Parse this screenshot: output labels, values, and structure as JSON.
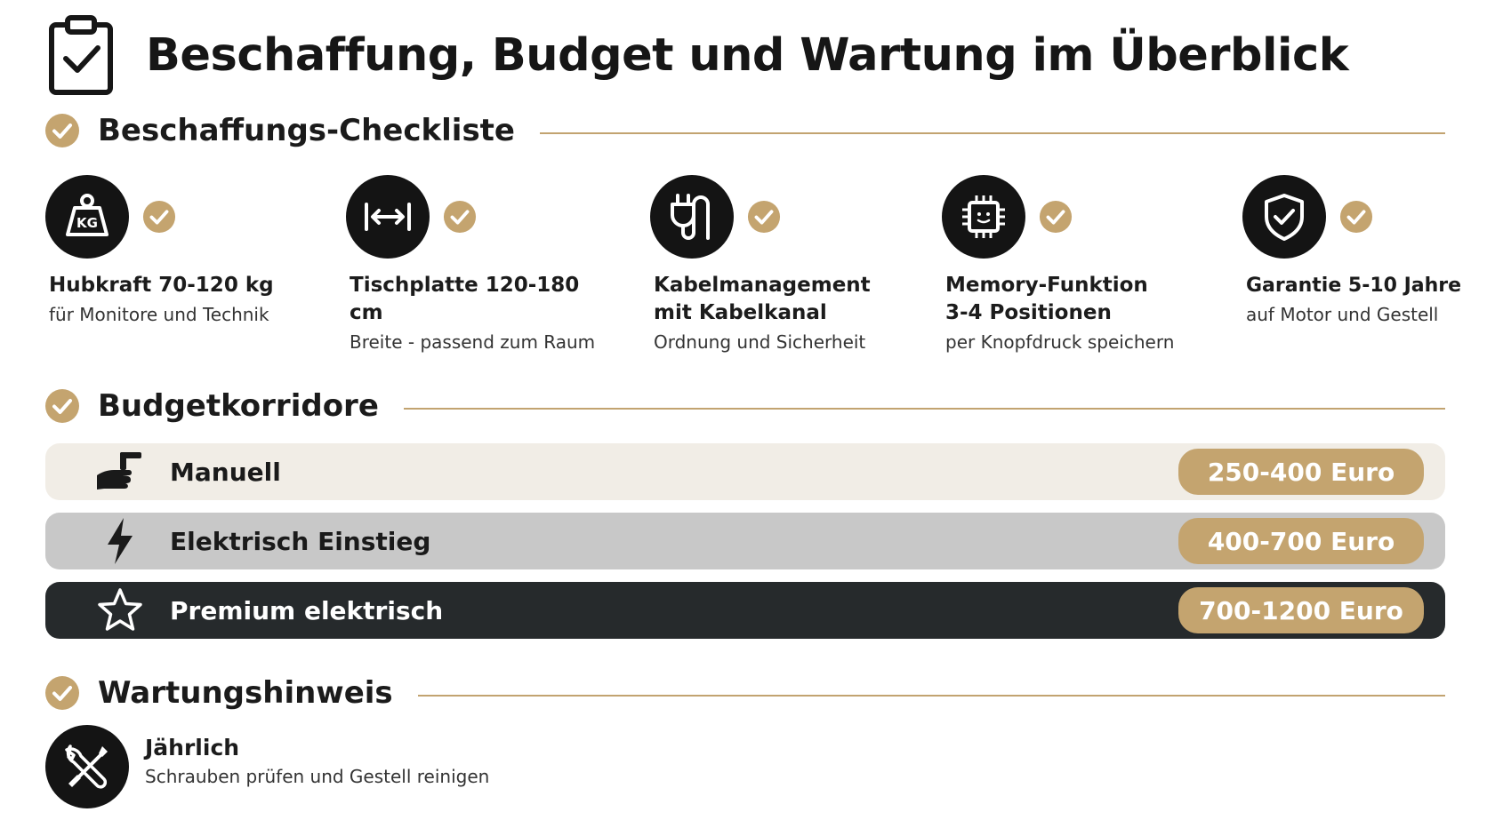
{
  "header": {
    "title": "Beschaffung, Budget und Wartung im Überblick",
    "icon": "clipboard-check-icon"
  },
  "checklist": {
    "heading": "Beschaffungs-Checkliste",
    "items": [
      {
        "icon": "weight-kg-icon",
        "title_lines": [
          "Hubkraft 70-120 kg"
        ],
        "subtitle": "für Monitore und Technik"
      },
      {
        "icon": "width-arrows-icon",
        "title_lines": [
          "Tischplatte 120-180 cm"
        ],
        "subtitle": "Breite - passend zum Raum"
      },
      {
        "icon": "power-plug-icon",
        "title_lines": [
          "Kabelmanagement",
          "mit Kabelkanal"
        ],
        "subtitle": "Ordnung und Sicherheit"
      },
      {
        "icon": "chip-icon",
        "title_lines": [
          "Memory-Funktion",
          "3-4 Positionen"
        ],
        "subtitle": "per Knopfdruck speichern"
      },
      {
        "icon": "shield-check-icon",
        "title_lines": [
          "Garantie 5-10 Jahre"
        ],
        "subtitle": "auf Motor und Gestell"
      }
    ]
  },
  "budget": {
    "heading": "Budgetkorridore",
    "rows": [
      {
        "icon": "hand-crank-icon",
        "label": "Manuell",
        "price": "250-400 Euro"
      },
      {
        "icon": "lightning-icon",
        "label": "Elektrisch Einstieg",
        "price": "400-700 Euro"
      },
      {
        "icon": "star-icon",
        "label": "Premium elektrisch",
        "price": "700-1200 Euro"
      }
    ]
  },
  "maintenance": {
    "heading": "Wartungshinweis",
    "icon": "tools-icon",
    "title": "Jährlich",
    "subtitle": "Schrauben prüfen und Gestell reinigen"
  },
  "colors": {
    "accent_gold": "#c4a46f",
    "dark": "#141414",
    "row_light": "#f1ede6",
    "row_gray": "#c8c8c8",
    "row_dark": "#262a2c"
  }
}
